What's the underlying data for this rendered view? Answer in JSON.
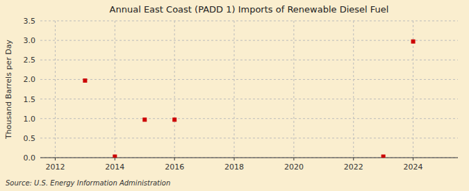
{
  "chart_data": {
    "type": "scatter",
    "title": "Annual East Coast (PADD 1) Imports of Renewable Diesel Fuel",
    "ylabel": "Thousand Barrels per Day",
    "source": "Source: U.S. Energy Information Administration",
    "x": [
      2013,
      2014,
      2015,
      2016,
      2023,
      2024
    ],
    "values": [
      1.972,
      0.027,
      0.972,
      0.972,
      0.027,
      2.972
    ],
    "xlim": [
      2011.5,
      2025.5
    ],
    "ylim": [
      0.0,
      3.5
    ],
    "xticks": [
      2012,
      2014,
      2016,
      2018,
      2020,
      2022,
      2024
    ],
    "yticks": [
      {
        "value": 0.0,
        "label": "0.0"
      },
      0.5,
      {
        "value": 1.0,
        "label": "1.0"
      },
      1.5,
      {
        "value": 2.0,
        "label": "2.0"
      },
      2.5,
      {
        "value": 3.0,
        "label": "3.0"
      },
      3.5
    ],
    "color": "#cc0000",
    "marker": "square",
    "grid": true
  }
}
